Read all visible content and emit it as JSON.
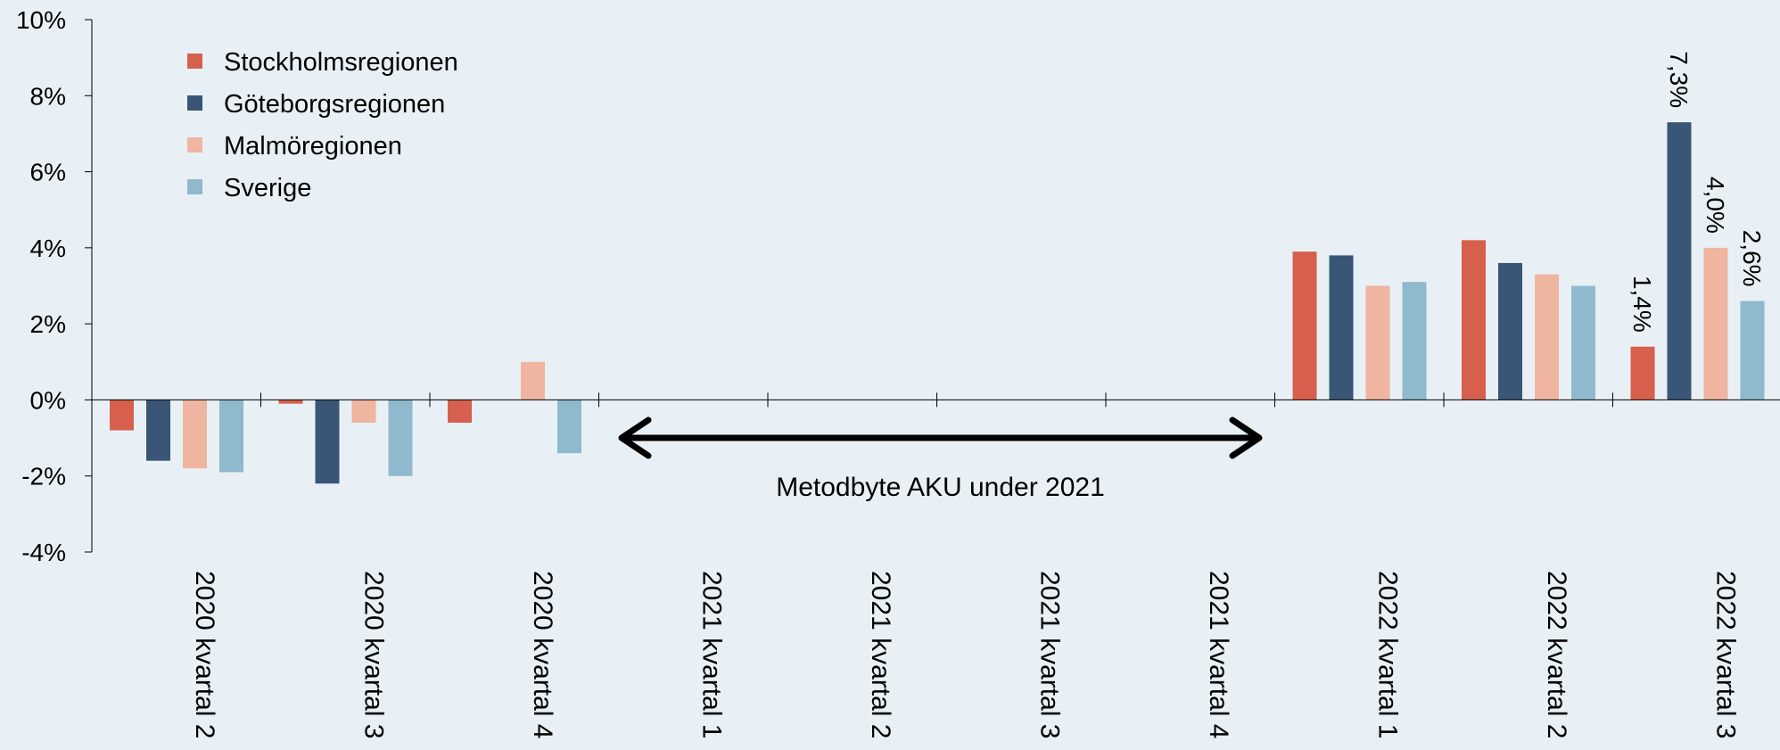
{
  "chart_data": {
    "type": "bar",
    "categories": [
      "2020 kvartal 2",
      "2020 kvartal 3",
      "2020 kvartal 4",
      "2021 kvartal 1",
      "2021 kvartal 2",
      "2021 kvartal 3",
      "2021 kvartal 4",
      "2022 kvartal 1",
      "2022 kvartal 2",
      "2022 kvartal 3"
    ],
    "series": [
      {
        "name": "Stockholmsregionen",
        "color": "#d6604d",
        "values": [
          -0.8,
          -0.1,
          -0.6,
          null,
          null,
          null,
          null,
          3.9,
          4.2,
          1.4
        ]
      },
      {
        "name": "Göteborgsregionen",
        "color": "#3a5676",
        "values": [
          -1.6,
          -2.2,
          null,
          null,
          null,
          null,
          null,
          3.8,
          3.6,
          7.3
        ]
      },
      {
        "name": "Malmöregionen",
        "color": "#efb5a0",
        "values": [
          -1.8,
          -0.6,
          1.0,
          null,
          null,
          null,
          null,
          3.0,
          3.3,
          4.0
        ]
      },
      {
        "name": "Sverige",
        "color": "#8fb9cd",
        "values": [
          -1.9,
          -2.0,
          -1.4,
          null,
          null,
          null,
          null,
          3.1,
          3.0,
          2.6
        ]
      }
    ],
    "ylim": [
      -4,
      10
    ],
    "yticks": [
      -4,
      -2,
      0,
      2,
      4,
      6,
      8,
      10
    ],
    "ytick_labels": [
      "-4%",
      "-2%",
      "0%",
      "2%",
      "4%",
      "6%",
      "8%",
      "10%"
    ],
    "data_labels": [
      {
        "category_index": 9,
        "series_index": 0,
        "text": "1,4%"
      },
      {
        "category_index": 9,
        "series_index": 1,
        "text": "7,3%"
      },
      {
        "category_index": 9,
        "series_index": 2,
        "text": "4,0%"
      },
      {
        "category_index": 9,
        "series_index": 3,
        "text": "2,6%"
      }
    ],
    "annotation": {
      "text": "Metodbyte AKU under 2021",
      "from_category": 3,
      "to_category": 6
    },
    "legend_position": "top-left",
    "grid": false,
    "title": "",
    "xlabel": "",
    "ylabel": ""
  }
}
